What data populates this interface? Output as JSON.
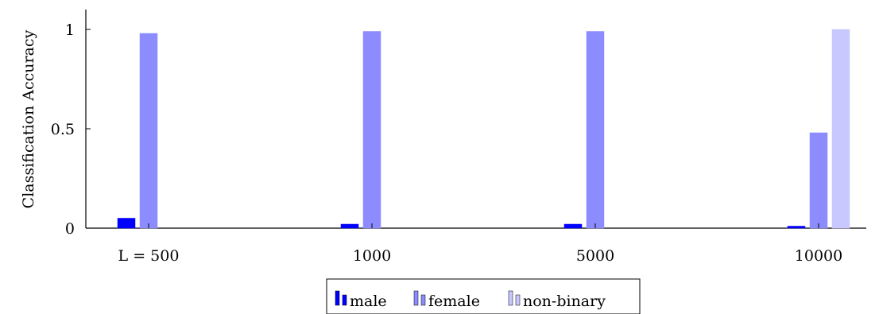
{
  "chart_data": {
    "type": "bar",
    "ylabel": "Classification Accuracy",
    "xlabel": "",
    "ylim": [
      0,
      1.1
    ],
    "yticks": [
      0,
      0.5,
      1
    ],
    "ytick_labels": [
      "0",
      "0.5",
      "1"
    ],
    "categories": [
      "L = 500",
      "1000",
      "5000",
      "10000"
    ],
    "series": [
      {
        "name": "male",
        "values": [
          0.05,
          0.02,
          0.02,
          0.01
        ],
        "color": "#0000ff"
      },
      {
        "name": "female",
        "values": [
          0.98,
          0.99,
          0.99,
          0.48
        ],
        "color": "#8c8cff"
      },
      {
        "name": "non-binary",
        "values": [
          0,
          0,
          0,
          1.0
        ],
        "color": "#c8c8ff"
      }
    ],
    "legend_position": "bottom-center",
    "grid": false
  }
}
